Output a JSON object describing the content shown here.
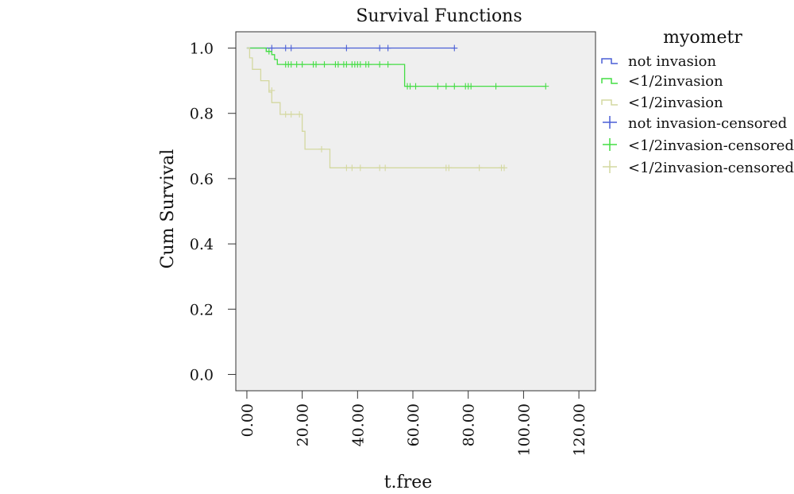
{
  "chart_data": {
    "type": "line",
    "subtype": "kaplan-meier",
    "title": "Survival Functions",
    "xlabel": "t.free",
    "ylabel": "Cum Survival",
    "xlim": [
      -4,
      126
    ],
    "ylim": [
      -0.05,
      1.05
    ],
    "xticks": [
      0,
      20,
      40,
      60,
      80,
      100,
      120
    ],
    "xtick_labels": [
      "0.00",
      "20.00",
      "40.00",
      "60.00",
      "80.00",
      "100.00",
      "120.00"
    ],
    "yticks": [
      0,
      0.2,
      0.4,
      0.6,
      0.8,
      1.0
    ],
    "ytick_labels": [
      "0.0",
      "0.2",
      "0.4",
      "0.6",
      "0.8",
      "1.0"
    ],
    "grid": false,
    "plot_background": "#efefef",
    "legend": {
      "title": "myometr",
      "placement": "right",
      "entries": [
        {
          "label": "not invasion",
          "kind": "line",
          "color": "#4a5fd6"
        },
        {
          "label": "<1/2invasion",
          "kind": "line",
          "color": "#44dd44"
        },
        {
          "label": "<1/2invasion",
          "kind": "line",
          "color": "#d4d8a0"
        },
        {
          "label": "not invasion-censored",
          "kind": "censor",
          "color": "#4a5fd6"
        },
        {
          "label": "<1/2invasion-censored",
          "kind": "censor",
          "color": "#44dd44"
        },
        {
          "label": "<1/2invasion-censored",
          "kind": "censor",
          "color": "#d4d8a0"
        }
      ]
    },
    "series": [
      {
        "color": "#4a5fd6",
        "steps": [
          [
            0,
            1.0
          ],
          [
            75,
            1.0
          ]
        ],
        "censored": [
          [
            9,
            1.0
          ],
          [
            14,
            1.0
          ],
          [
            16,
            1.0
          ],
          [
            36,
            1.0
          ],
          [
            48,
            1.0
          ],
          [
            51,
            1.0
          ],
          [
            75,
            1.0
          ]
        ]
      },
      {
        "color": "#44dd44",
        "steps": [
          [
            0,
            1.0
          ],
          [
            7,
            1.0
          ],
          [
            7,
            0.99
          ],
          [
            9,
            0.99
          ],
          [
            9,
            0.98
          ],
          [
            10,
            0.98
          ],
          [
            10,
            0.965
          ],
          [
            11,
            0.965
          ],
          [
            11,
            0.95
          ],
          [
            57,
            0.95
          ],
          [
            57,
            0.883
          ],
          [
            108,
            0.883
          ]
        ],
        "censored": [
          [
            8,
            0.99
          ],
          [
            14,
            0.95
          ],
          [
            15,
            0.95
          ],
          [
            16,
            0.95
          ],
          [
            18,
            0.95
          ],
          [
            20,
            0.95
          ],
          [
            24,
            0.95
          ],
          [
            25,
            0.95
          ],
          [
            28,
            0.95
          ],
          [
            32,
            0.95
          ],
          [
            33,
            0.95
          ],
          [
            35,
            0.95
          ],
          [
            36,
            0.95
          ],
          [
            38,
            0.95
          ],
          [
            39,
            0.95
          ],
          [
            40,
            0.95
          ],
          [
            41,
            0.95
          ],
          [
            43,
            0.95
          ],
          [
            44,
            0.95
          ],
          [
            48,
            0.95
          ],
          [
            51,
            0.95
          ],
          [
            58,
            0.883
          ],
          [
            59,
            0.883
          ],
          [
            61,
            0.883
          ],
          [
            69,
            0.883
          ],
          [
            72,
            0.883
          ],
          [
            75,
            0.883
          ],
          [
            79,
            0.883
          ],
          [
            80,
            0.883
          ],
          [
            81,
            0.883
          ],
          [
            90,
            0.883
          ],
          [
            108,
            0.883
          ]
        ]
      },
      {
        "color": "#d4d8a0",
        "steps": [
          [
            0,
            1.0
          ],
          [
            1,
            1.0
          ],
          [
            1,
            0.97
          ],
          [
            2,
            0.97
          ],
          [
            2,
            0.935
          ],
          [
            5,
            0.935
          ],
          [
            5,
            0.9
          ],
          [
            8,
            0.9
          ],
          [
            8,
            0.865
          ],
          [
            9,
            0.865
          ],
          [
            9,
            0.833
          ],
          [
            12,
            0.833
          ],
          [
            12,
            0.797
          ],
          [
            20,
            0.797
          ],
          [
            20,
            0.745
          ],
          [
            21,
            0.745
          ],
          [
            21,
            0.69
          ],
          [
            30,
            0.69
          ],
          [
            30,
            0.633
          ],
          [
            93,
            0.633
          ]
        ],
        "censored": [
          [
            9,
            0.87
          ],
          [
            14,
            0.797
          ],
          [
            16,
            0.797
          ],
          [
            19,
            0.797
          ],
          [
            27,
            0.69
          ],
          [
            36,
            0.633
          ],
          [
            38,
            0.633
          ],
          [
            41,
            0.633
          ],
          [
            48,
            0.633
          ],
          [
            50,
            0.633
          ],
          [
            72,
            0.633
          ],
          [
            73,
            0.633
          ],
          [
            84,
            0.633
          ],
          [
            92,
            0.633
          ],
          [
            93,
            0.633
          ]
        ]
      }
    ]
  }
}
